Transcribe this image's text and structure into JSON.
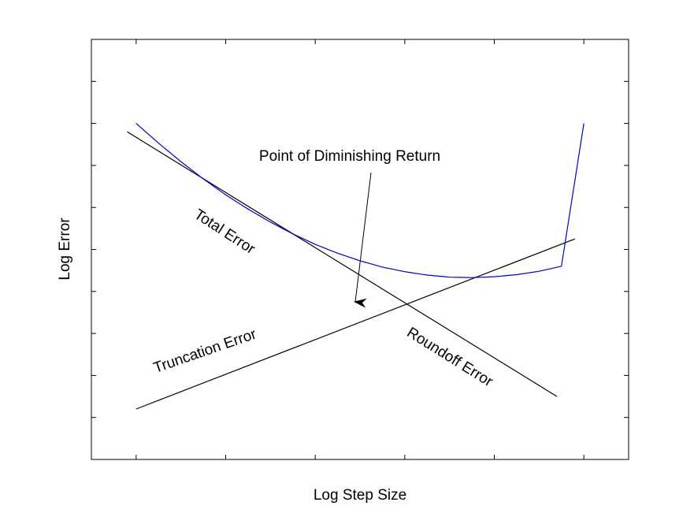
{
  "chart_data": {
    "type": "line",
    "xlabel": "Log Step Size",
    "ylabel": "Log Error",
    "grid": false,
    "xlim": [
      -0.5,
      5.5
    ],
    "ylim": [
      -3,
      7
    ],
    "xticks": [
      0,
      1,
      2,
      3,
      4,
      5
    ],
    "yticks": [
      -2,
      -1,
      0,
      1,
      2,
      3,
      4,
      5,
      6
    ],
    "series": [
      {
        "name": "Roundoff Error",
        "color": "#000000",
        "x": [
          -0.1,
          4.7
        ],
        "y": [
          4.8,
          -1.5
        ]
      },
      {
        "name": "Truncation Error",
        "color": "#000000",
        "x": [
          0,
          4.9
        ],
        "y": [
          -1.8,
          2.25
        ]
      },
      {
        "name": "Total Error",
        "color": "#0000cc",
        "x": [
          0,
          0.25,
          0.5,
          0.75,
          1.0,
          1.25,
          1.5,
          1.75,
          2.0,
          2.25,
          2.5,
          2.75,
          3.0,
          3.25,
          3.5,
          3.75,
          4.0,
          4.25,
          4.5,
          4.75,
          5.0
        ],
        "y": [
          5.0,
          4.53,
          4.09,
          3.68,
          3.3,
          2.96,
          2.65,
          2.37,
          2.12,
          1.91,
          1.73,
          1.58,
          1.47,
          1.39,
          1.34,
          1.33,
          1.35,
          1.4,
          1.48,
          1.6,
          5.0
        ]
      }
    ],
    "annotations": [
      {
        "text": "Point of Diminishing Return",
        "x": 2.5,
        "y": 1.0
      }
    ]
  }
}
